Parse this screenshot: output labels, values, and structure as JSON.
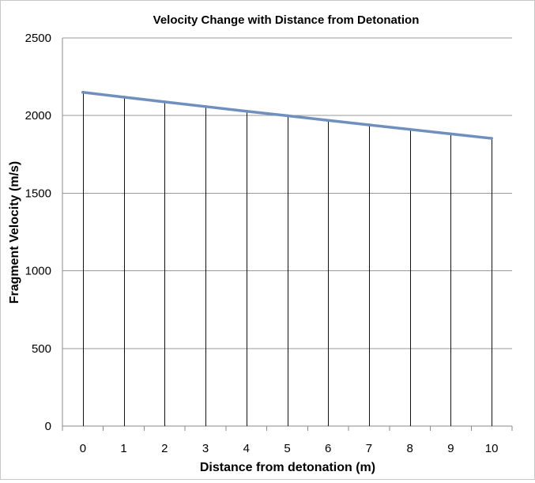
{
  "chart_data": {
    "type": "line",
    "title": "Velocity Change with Distance from Detonation",
    "xlabel": "Distance from detonation (m)",
    "ylabel": "Fragment Velocity (m/s)",
    "categories": [
      "0",
      "1",
      "2",
      "3",
      "4",
      "5",
      "6",
      "7",
      "8",
      "9",
      "10"
    ],
    "series": [
      {
        "values": [
          2150,
          2119,
          2088,
          2058,
          2028,
          1999,
          1969,
          1940,
          1911,
          1882,
          1853
        ],
        "color": "#6f8fbf"
      }
    ],
    "ylim": [
      0,
      2500
    ],
    "yticks": [
      0,
      500,
      1000,
      1500,
      2000,
      2500
    ],
    "grid": true,
    "drop_lines": true,
    "legend": "none"
  }
}
